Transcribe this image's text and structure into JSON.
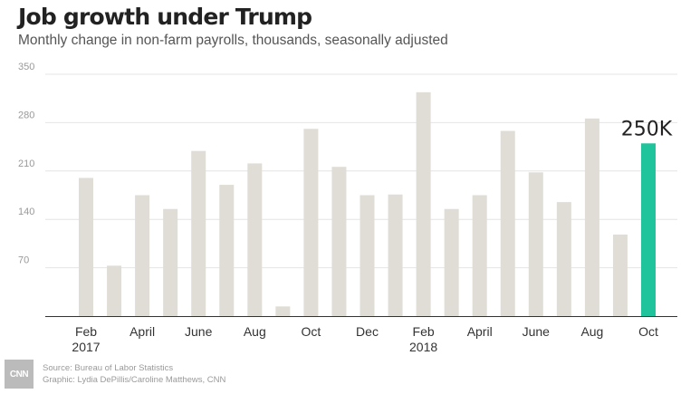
{
  "title": "Job growth under Trump",
  "subtitle": "Monthly change in non-farm payrolls, thousands, seasonally adjusted",
  "source_line": "Source: Bureau of Labor Statistics",
  "graphic_line": "Graphic: Lydia DePillis/Caroline Matthews, CNN",
  "logo_text": "CNN",
  "colors": {
    "bar": "#e0ddd6",
    "highlight": "#1fc39c",
    "grid": "#e4e4e4",
    "axis": "#333333"
  },
  "chart_data": {
    "type": "bar",
    "title": "Job growth under Trump",
    "subtitle": "Monthly change in non-farm payrolls, thousands, seasonally adjusted",
    "ylim": [
      0,
      350
    ],
    "yticks": [
      70,
      140,
      210,
      280,
      350
    ],
    "grid": true,
    "categories": [
      "Feb 2017",
      "Mar 2017",
      "Apr 2017",
      "May 2017",
      "Jun 2017",
      "Jul 2017",
      "Aug 2017",
      "Sep 2017",
      "Oct 2017",
      "Nov 2017",
      "Dec 2017",
      "Jan 2018",
      "Feb 2018",
      "Mar 2018",
      "Apr 2018",
      "May 2018",
      "Jun 2018",
      "Jul 2018",
      "Aug 2018",
      "Sep 2018",
      "Oct 2018"
    ],
    "values": [
      200,
      73,
      175,
      155,
      239,
      190,
      221,
      14,
      271,
      216,
      175,
      176,
      324,
      155,
      175,
      268,
      208,
      165,
      286,
      118,
      250
    ],
    "highlight_index": 20,
    "x_tick_labels": [
      {
        "index": 0,
        "line1": "Feb",
        "line2": "2017"
      },
      {
        "index": 2,
        "line1": "April",
        "line2": ""
      },
      {
        "index": 4,
        "line1": "June",
        "line2": ""
      },
      {
        "index": 6,
        "line1": "Aug",
        "line2": ""
      },
      {
        "index": 8,
        "line1": "Oct",
        "line2": ""
      },
      {
        "index": 10,
        "line1": "Dec",
        "line2": ""
      },
      {
        "index": 12,
        "line1": "Feb",
        "line2": "2018"
      },
      {
        "index": 14,
        "line1": "April",
        "line2": ""
      },
      {
        "index": 16,
        "line1": "June",
        "line2": ""
      },
      {
        "index": 18,
        "line1": "Aug",
        "line2": ""
      },
      {
        "index": 20,
        "line1": "Oct",
        "line2": ""
      }
    ],
    "annotations": [
      {
        "index": 20,
        "text": "250K"
      }
    ]
  }
}
